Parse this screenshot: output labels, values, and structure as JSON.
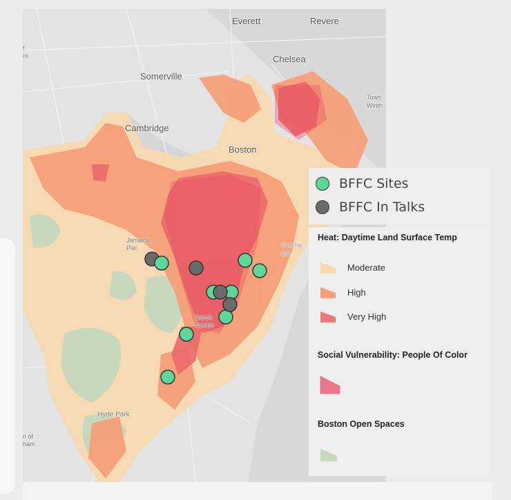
{
  "map": {
    "places": {
      "everett": "Everett",
      "revere": "Revere",
      "chelsea": "Chelsea",
      "somerville": "Somerville",
      "cambridge": "Cambridge",
      "boston": "Boston",
      "jamaica_plain": "Jamaica\nPlai",
      "dorchester": "Dorch\nCenter",
      "hyde_park": "Hyde Park",
      "winthrop": "Town\nWinth",
      "dorchester_bay": "Dorche\nBa",
      "edge_top": "f\nnt",
      "edge_bottom": "n of\nham"
    },
    "colors": {
      "sites": "#5dd89a",
      "in_talks": "#6b6b6b",
      "moderate": "#f7d9b0",
      "high": "#f5a07a",
      "very_high": "#ec6a6a",
      "poc": "#e8445e",
      "open_space": "#c8d8bd"
    }
  },
  "legend": {
    "sites_label": "BFFC Sites",
    "talks_label": "BFFC In Talks",
    "heat_title": "Heat: Daytime Land Surface Temp",
    "heat_items": [
      "Moderate",
      "High",
      "Very High"
    ],
    "social_title": "Social Vulnerability: People Of Color",
    "open_title": "Boston Open Spaces"
  }
}
